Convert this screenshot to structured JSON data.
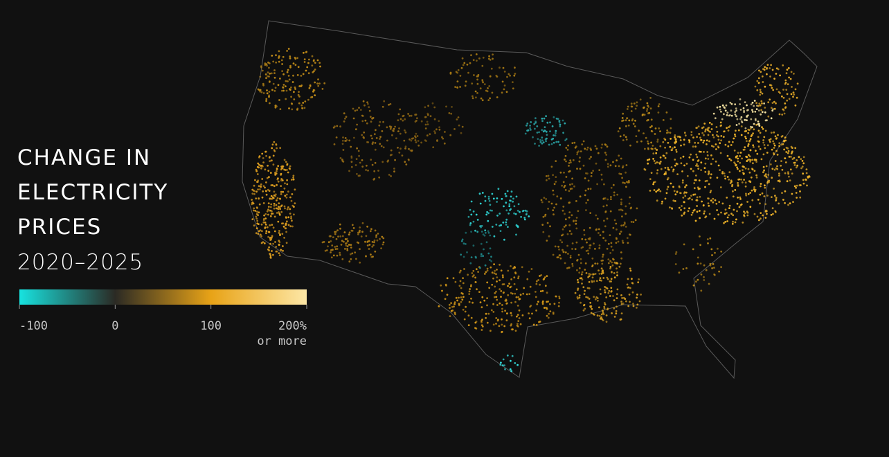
{
  "title_lines": [
    "CHANGE IN",
    "ELECTRICITY",
    "PRICES"
  ],
  "subtitle": "2020–2025",
  "legend": {
    "lim": [
      -100,
      200
    ],
    "ticks": [
      -100,
      0,
      100,
      {
        "value": 200,
        "label": "200%"
      }
    ],
    "note": "or more",
    "stops": [
      {
        "value": -100,
        "color": "#17e3e0"
      },
      {
        "value": 0,
        "color": "#2b2a24"
      },
      {
        "value": 100,
        "color": "#e8a317"
      },
      {
        "value": 200,
        "color": "#fde7a6"
      }
    ]
  }
}
